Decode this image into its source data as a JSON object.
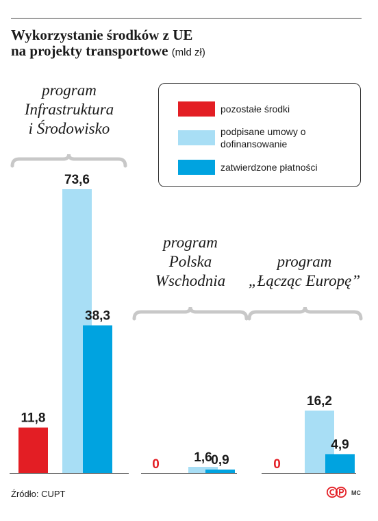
{
  "title": {
    "line1": "Wykorzystanie środków z UE",
    "line2": "na projekty transportowe",
    "unit": "(mld zł)"
  },
  "legend": {
    "items": [
      {
        "label": "pozostałe środki",
        "color": "#e31e24"
      },
      {
        "label": "podpisane umowy o dofinansowanie",
        "color": "#a8def5"
      },
      {
        "label": "zatwierdzone płatności",
        "color": "#00a3e0"
      }
    ]
  },
  "chart_data": {
    "type": "bar",
    "categories": [
      "program Infrastruktura i Środowisko",
      "program Polska Wschodnia",
      "program „Łącząc Europę”"
    ],
    "series": [
      {
        "name": "pozostałe środki",
        "color": "#e31e24",
        "values": [
          11.8,
          0,
          0
        ],
        "labels": [
          "11,8",
          "0",
          "0"
        ]
      },
      {
        "name": "podpisane umowy o dofinansowanie",
        "color": "#a8def5",
        "values": [
          73.6,
          1.6,
          16.2
        ],
        "labels": [
          "73,6",
          "1,6",
          "16,2"
        ]
      },
      {
        "name": "zatwierdzone płatności",
        "color": "#00a3e0",
        "values": [
          38.3,
          0.9,
          4.9
        ],
        "labels": [
          "38,3",
          "0,9",
          "4,9"
        ]
      }
    ],
    "ylim": [
      0,
      73.6
    ],
    "grid": false,
    "legend_position": "top-right"
  },
  "groups": [
    {
      "line1": "program",
      "line2": "Infrastruktura",
      "line3": "i Środowisko"
    },
    {
      "line1": "program",
      "line2": "Polska",
      "line3": "Wschodnia"
    },
    {
      "line1": "program",
      "line2": "„Łącząc Europę”",
      "line3": ""
    }
  ],
  "source": "Źródło: CUPT",
  "author": "MC"
}
